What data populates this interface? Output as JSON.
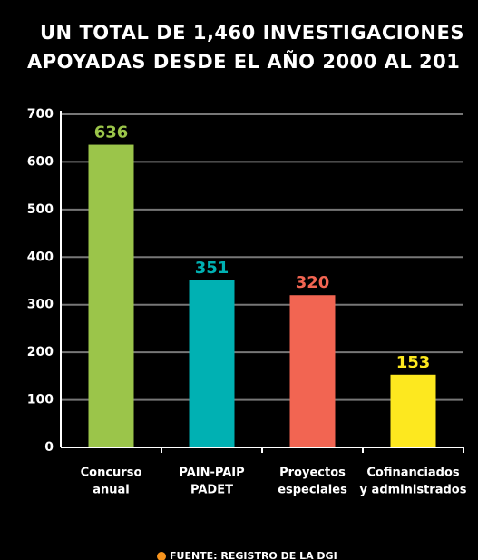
{
  "chart_data": {
    "type": "bar",
    "title": [
      "UN TOTAL DE 1,460 INVESTIGACIONES",
      "APOYADAS DESDE EL AÑO 2000 AL 201"
    ],
    "categories": [
      [
        "Concurso",
        "anual"
      ],
      [
        "PAIN-PAIP",
        "PADET"
      ],
      [
        "Proyectos",
        "especiales"
      ],
      [
        "Cofinanciados",
        "y administrados"
      ]
    ],
    "values": [
      636,
      351,
      320,
      153
    ],
    "colors": [
      "#9bc54a",
      "#00b1b3",
      "#f26552",
      "#fde81f"
    ],
    "ylim": [
      0,
      700
    ],
    "yticks": [
      0,
      100,
      200,
      300,
      400,
      500,
      600,
      700
    ],
    "grid": true,
    "source": "FUENTE: REGISTRO DE LA DGI"
  }
}
